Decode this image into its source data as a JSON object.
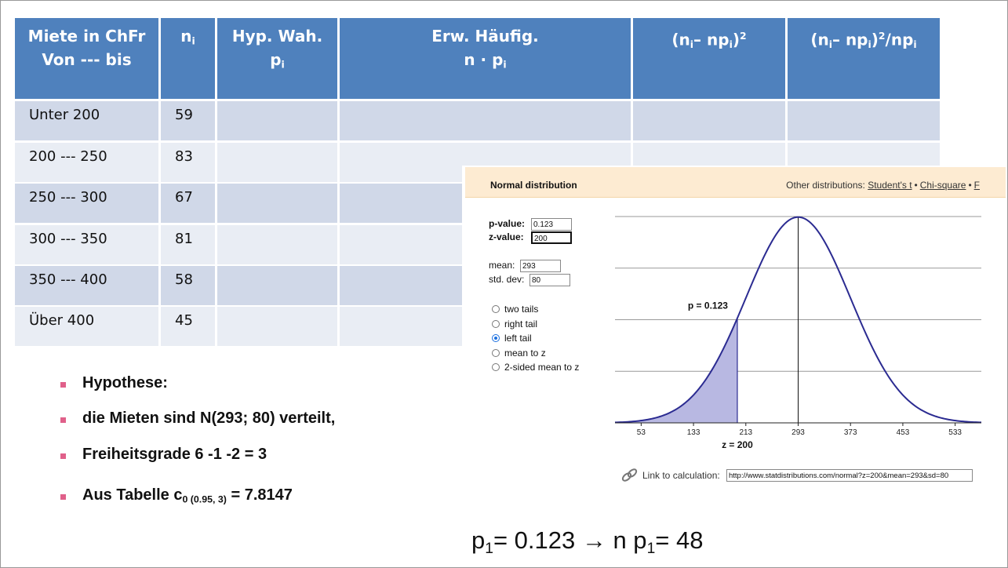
{
  "table": {
    "header": [
      [
        [
          {
            "text": "Miete in ChFr"
          }
        ],
        [
          {
            "text": "Von --- bis"
          }
        ]
      ],
      [
        [
          {
            "text": "n"
          },
          {
            "sub": "i"
          }
        ]
      ],
      [
        [
          {
            "text": "Hyp. Wah."
          }
        ],
        [
          {
            "text": "p"
          },
          {
            "sub": "i"
          }
        ]
      ],
      [
        [
          {
            "text": "Erw. Häufig."
          }
        ],
        [
          {
            "text": "n · p"
          },
          {
            "sub": "i"
          }
        ]
      ],
      [
        [
          {
            "text": "(n"
          },
          {
            "sub": "i"
          },
          {
            "text": "– np"
          },
          {
            "sub": "i"
          },
          {
            "text": ")"
          },
          {
            "sup": "2"
          }
        ]
      ],
      [
        [
          {
            "text": "(n"
          },
          {
            "sub": "i"
          },
          {
            "text": "– np"
          },
          {
            "sub": "i"
          },
          {
            "text": ")"
          },
          {
            "sup": "2"
          },
          {
            "text": "/np"
          },
          {
            "sub": "i"
          }
        ]
      ]
    ],
    "rows": [
      [
        "Unter 200",
        "59"
      ],
      [
        "200 --- 250",
        "83"
      ],
      [
        "250 --- 300",
        "67"
      ],
      [
        "300 --- 350",
        "81"
      ],
      [
        "350 --- 400",
        "58"
      ],
      [
        "Über 400",
        "45"
      ]
    ]
  },
  "bullets": [
    [
      {
        "text": "Hypothese:"
      }
    ],
    [
      {
        "text": "die Mieten sind  N(293; 80) verteilt,"
      }
    ],
    [
      {
        "text": "Freiheitsgrade 6 -1 -2 = 3"
      }
    ],
    [
      {
        "text": "Aus Tabelle  c"
      },
      {
        "sub": "0 (0.95, 3)"
      },
      {
        "text": " = 7.8147"
      }
    ]
  ],
  "footer": [
    {
      "text": "p"
    },
    {
      "sub": "1"
    },
    {
      "text": "= 0.123 → n p"
    },
    {
      "sub": "1"
    },
    {
      "text": "= 48"
    }
  ],
  "calculator": {
    "title": "Normal distribution",
    "other_label": "Other distributions:",
    "links": [
      "Student's t",
      "Chi-square",
      "F"
    ],
    "separator": "•",
    "inputs": [
      {
        "label": "p-value:",
        "value": "0.123"
      },
      {
        "label": "z-value:",
        "value": "200"
      },
      {
        "label": "mean:",
        "value": "293"
      },
      {
        "label": "std. dev:",
        "value": "80"
      }
    ],
    "options": [
      "two tails",
      "right tail",
      "left tail",
      "mean to z",
      "2-sided mean to z"
    ],
    "selected_option": 2,
    "link_label": "Link to calculation:",
    "link_url": "http://www.statdistributions.com/normal?z=200&mean=293&sd=80"
  },
  "chart_data": {
    "type": "normal",
    "annotation": "p = 0.123",
    "x_label": "z = 200",
    "mean": 293,
    "sd": 80,
    "z": 200,
    "xlim": [
      13,
      573
    ],
    "xticks": [
      53,
      133,
      213,
      293,
      373,
      453,
      533
    ],
    "ylim": [
      0,
      0.005
    ],
    "yticks": [
      0.00125,
      0.0025,
      0.00375,
      0.005
    ],
    "grid": true,
    "color": "#2b2b91",
    "fill": "#b8b8e2"
  }
}
